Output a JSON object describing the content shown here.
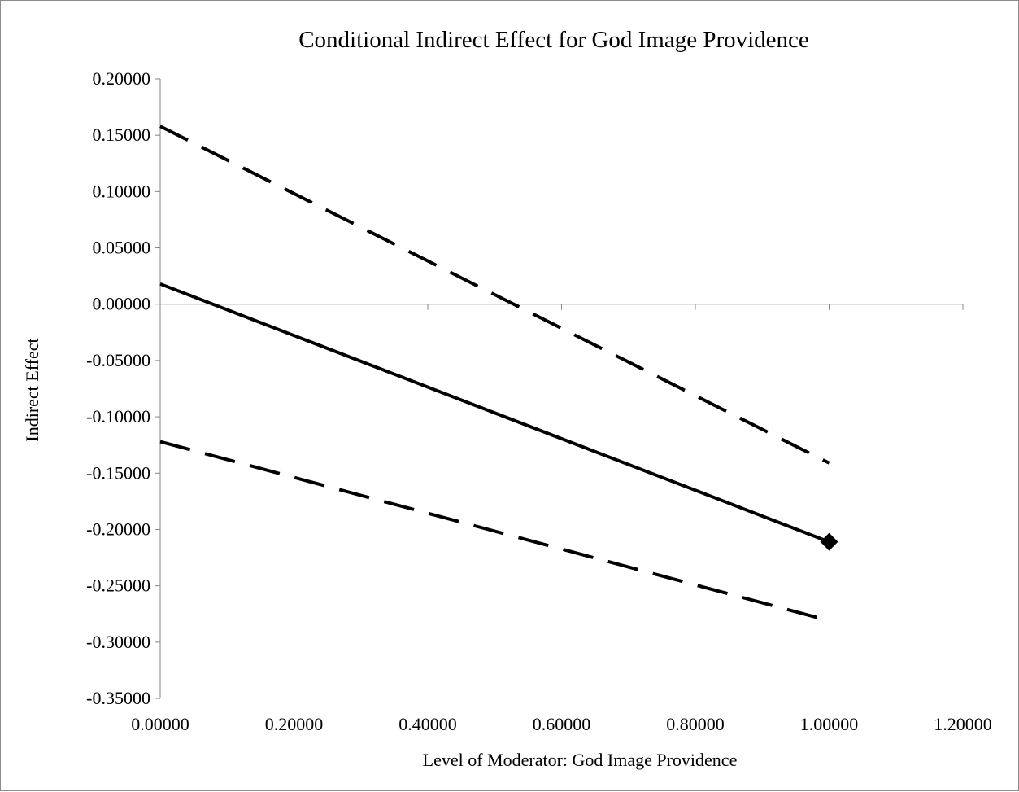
{
  "chart_data": {
    "type": "line",
    "title": "Conditional Indirect Effect for God Image Providence",
    "xlabel": "Level of Moderator: God Image Providence",
    "ylabel": "Indirect Effect",
    "xlim": [
      0,
      1.2
    ],
    "ylim": [
      -0.35,
      0.2
    ],
    "x_ticks": [
      "0.00000",
      "0.20000",
      "0.40000",
      "0.60000",
      "0.80000",
      "1.00000",
      "1.20000"
    ],
    "y_ticks": [
      "0.20000",
      "0.15000",
      "0.10000",
      "0.05000",
      "0.00000",
      "-0.05000",
      "-0.10000",
      "-0.15000",
      "-0.20000",
      "-0.25000",
      "-0.30000",
      "-0.35000"
    ],
    "grid": false,
    "legend": "none",
    "series": [
      {
        "style": "dashed",
        "color": "#000000",
        "x": [
          0,
          1
        ],
        "y": [
          0.158,
          -0.141
        ]
      },
      {
        "style": "solid",
        "color": "#000000",
        "x": [
          0,
          1
        ],
        "y": [
          0.018,
          -0.211
        ],
        "end_marker": "diamond"
      },
      {
        "style": "dashed",
        "color": "#000000",
        "x": [
          0,
          1
        ],
        "y": [
          -0.122,
          -0.281
        ]
      }
    ]
  }
}
